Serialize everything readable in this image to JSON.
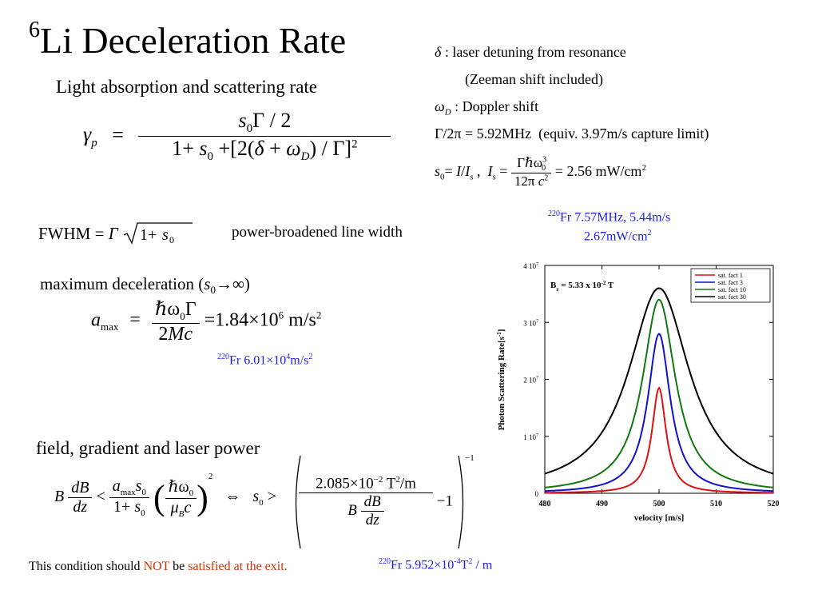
{
  "slide": {
    "title_sup": "6",
    "title_main": "Li Deceleration Rate",
    "subtitle": "Light absorption and scattering rate",
    "fwhm_label": "FWHM",
    "fwhm_note": "power-broadened line width",
    "max_decel_label": "maximum deceleration (",
    "max_decel_value": "1.84×10",
    "max_decel_exp": "6",
    "max_decel_unit": "m/s",
    "fr_decel": "Fr  6.01×10",
    "fr_decel_exp": "4",
    "fr_decel_unit": "m/s",
    "field_heading": "field, gradient and laser power",
    "field_value": "2.085×10",
    "field_exp": "−2",
    "field_unit": "T",
    "field_unit2": "/m",
    "condition_text_1": "This condition should ",
    "condition_not": "NOT",
    "condition_text_2": " be ",
    "condition_text_3": "satisfied at the exit.",
    "fr_gradient": "Fr  5.952×10",
    "fr_gradient_exp": "-4",
    "fr_gradient_unit": "T",
    "fr_gradient_unit2": " / m"
  },
  "definitions": {
    "delta": ": laser detuning from resonance",
    "zeeman": "(Zeeman shift included)",
    "doppler": ": Doppler shift",
    "gamma_eq": "Γ/2π = 5.92MHz",
    "gamma_note": "(equiv. 3.97m/s capture limit)",
    "sat_value": "= 2.56 mW/cm",
    "fr_line1": "Fr  7.57MHz, 5.44m/s",
    "fr_line2": "2.67mW/cm",
    "fr_mass": "220"
  },
  "chart_data": {
    "type": "line",
    "title": "",
    "xlabel": "velocity [m/s]",
    "ylabel": "Photon Scattering Rate[s",
    "ylabel_sup": "-1",
    "ylabel_end": "]",
    "annotation": "B  = 5.33 x 10  T",
    "annotation_sub": "z",
    "annotation_exp": "-2",
    "xlim": [
      480,
      520
    ],
    "ylim": [
      0,
      40000000
    ],
    "x_ticks": [
      "480",
      "490",
      "500",
      "510",
      "520"
    ],
    "y_ticks": [
      "0",
      "1 10",
      "2 10",
      "3 10",
      "4 10"
    ],
    "y_tick_exp": "7",
    "legend_position": "top-right",
    "series": [
      {
        "name": "sat. fact  1",
        "color": "#dd1111",
        "s0": 1,
        "peak": 18500000,
        "width": 1.5
      },
      {
        "name": "sat. fact  3",
        "color": "#1111cc",
        "s0": 3,
        "peak": 28000000,
        "width": 2.4
      },
      {
        "name": "sat. fact 10",
        "color": "#117711",
        "s0": 10,
        "peak": 34000000,
        "width": 3.5
      },
      {
        "name": "sat. fact 30",
        "color": "#000000",
        "s0": 30,
        "peak": 36000000,
        "width": 6.5
      }
    ]
  }
}
